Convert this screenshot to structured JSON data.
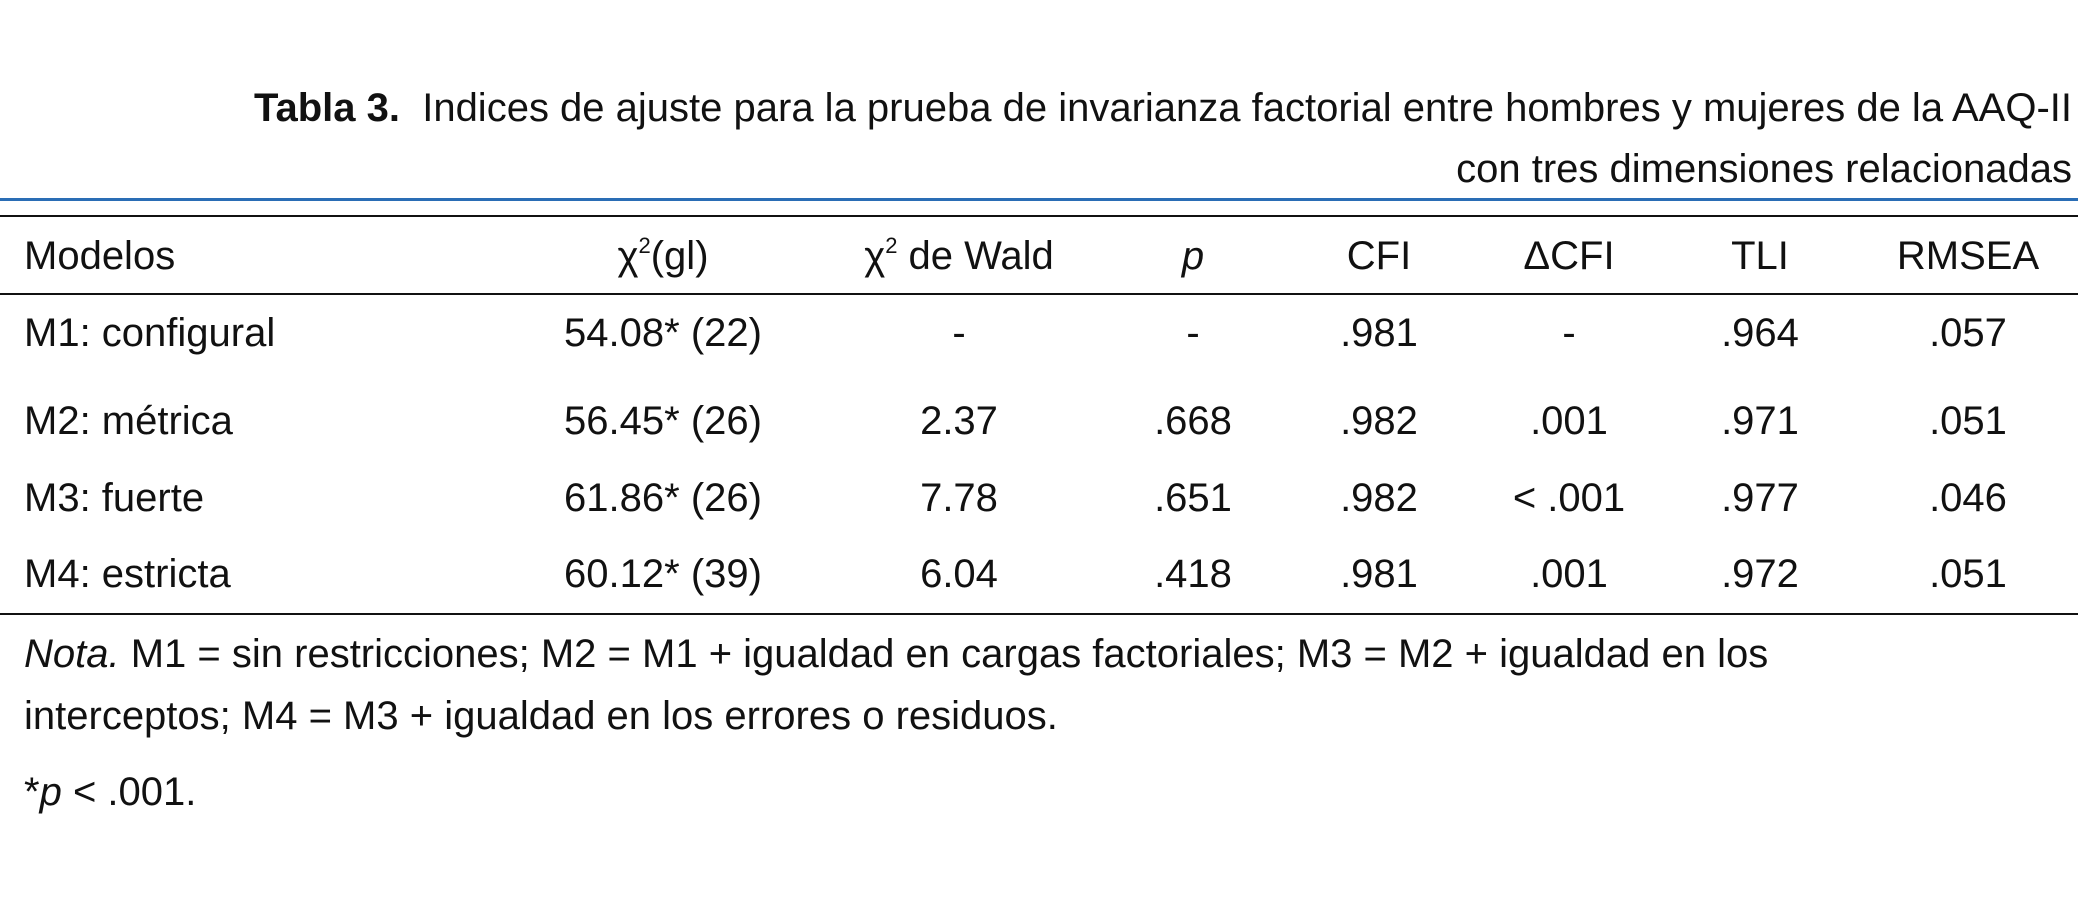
{
  "title": {
    "label": "Tabla 3.",
    "lines": [
      "Indices de ajuste para la prueba de invarianza factorial entre hombres y mujeres de la AAQ-II",
      "con tres dimensiones relacionadas"
    ]
  },
  "table": {
    "header": [
      {
        "text": "Modelos"
      },
      {
        "text": "χ",
        "sup": "2",
        "after": "(gl)"
      },
      {
        "text": "χ",
        "sup": "2",
        "after": " de Wald"
      },
      {
        "text": "p",
        "italic": true
      },
      {
        "text": "CFI"
      },
      {
        "text": "ΔCFI"
      },
      {
        "text": "TLI"
      },
      {
        "text": "RMSEA"
      }
    ],
    "rows": [
      [
        "M1: configural",
        "54.08* (22)",
        "-",
        "-",
        ".981",
        "-",
        ".964",
        ".057"
      ],
      [
        "M2: métrica",
        "56.45* (26)",
        "2.37",
        ".668",
        ".982",
        ".001",
        ".971",
        ".051"
      ],
      [
        "M3: fuerte",
        "61.86* (26)",
        "7.78",
        ".651",
        ".982",
        "< .001",
        ".977",
        ".046"
      ],
      [
        "M4: estricta",
        "60.12* (39)",
        "6.04",
        ".418",
        ".981",
        ".001",
        ".972",
        ".051"
      ]
    ]
  },
  "note": {
    "label": "Nota.",
    "lines": [
      " M1 = sin restricciones; M2 = M1 + igualdad en cargas factoriales; M3 = M2 + igualdad en los",
      "interceptos; M4 = M3 + igualdad en los errores o residuos."
    ]
  },
  "footnote": {
    "mark": "*",
    "symbol": "p",
    "text": " < .001."
  }
}
